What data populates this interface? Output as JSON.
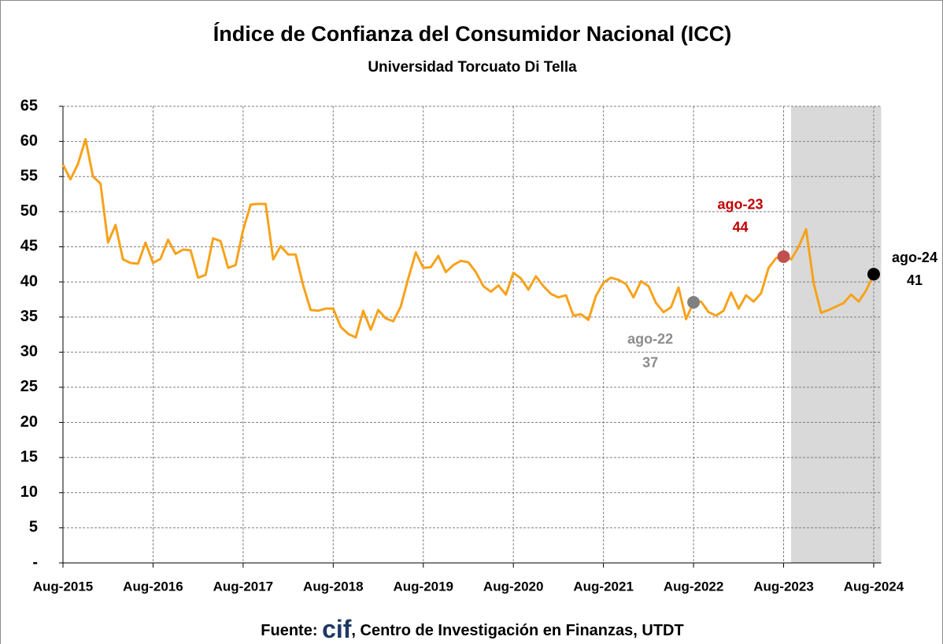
{
  "chart_data": {
    "type": "line",
    "title": "Índice de Confianza del Consumidor Nacional (ICC)",
    "subtitle": "Universidad Torcuato Di Tella",
    "source_prefix": "Fuente: ",
    "source_logo": "cif",
    "source_rest": ", Centro de Investigación en Finanzas, UTDT",
    "x": [
      "2015-08",
      "2015-09",
      "2015-10",
      "2015-11",
      "2015-12",
      "2016-01",
      "2016-02",
      "2016-03",
      "2016-04",
      "2016-05",
      "2016-06",
      "2016-07",
      "2016-08",
      "2016-09",
      "2016-10",
      "2016-11",
      "2016-12",
      "2017-01",
      "2017-02",
      "2017-03",
      "2017-04",
      "2017-05",
      "2017-06",
      "2017-07",
      "2017-08",
      "2017-09",
      "2017-10",
      "2017-11",
      "2017-12",
      "2018-01",
      "2018-02",
      "2018-03",
      "2018-04",
      "2018-05",
      "2018-06",
      "2018-07",
      "2018-08",
      "2018-09",
      "2018-10",
      "2018-11",
      "2018-12",
      "2019-01",
      "2019-02",
      "2019-03",
      "2019-04",
      "2019-05",
      "2019-06",
      "2019-07",
      "2019-08",
      "2019-09",
      "2019-10",
      "2019-11",
      "2019-12",
      "2020-01",
      "2020-02",
      "2020-03",
      "2020-04",
      "2020-05",
      "2020-06",
      "2020-07",
      "2020-08",
      "2020-09",
      "2020-10",
      "2020-11",
      "2020-12",
      "2021-01",
      "2021-02",
      "2021-03",
      "2021-04",
      "2021-05",
      "2021-06",
      "2021-07",
      "2021-08",
      "2021-09",
      "2021-10",
      "2021-11",
      "2021-12",
      "2022-01",
      "2022-02",
      "2022-03",
      "2022-04",
      "2022-05",
      "2022-06",
      "2022-07",
      "2022-08",
      "2022-09",
      "2022-10",
      "2022-11",
      "2022-12",
      "2023-01",
      "2023-02",
      "2023-03",
      "2023-04",
      "2023-05",
      "2023-06",
      "2023-07",
      "2023-08",
      "2023-09",
      "2023-10",
      "2023-11",
      "2023-12",
      "2024-01",
      "2024-02",
      "2024-03",
      "2024-04",
      "2024-05",
      "2024-06",
      "2024-07",
      "2024-08"
    ],
    "values": [
      56.7,
      54.6,
      56.8,
      60.3,
      55.0,
      54.0,
      45.6,
      48.1,
      43.2,
      42.7,
      42.6,
      45.6,
      42.7,
      43.3,
      46.0,
      44.0,
      44.6,
      44.5,
      40.6,
      41.0,
      46.2,
      45.8,
      42.0,
      42.4,
      47.4,
      51.0,
      51.1,
      51.1,
      43.2,
      45.1,
      43.9,
      43.9,
      39.5,
      36.0,
      35.9,
      36.2,
      36.2,
      33.6,
      32.6,
      32.1,
      35.9,
      33.2,
      36.0,
      34.8,
      34.4,
      36.5,
      40.5,
      44.2,
      42.0,
      42.1,
      43.7,
      41.4,
      42.4,
      43.0,
      42.8,
      41.4,
      39.4,
      38.6,
      39.5,
      38.2,
      41.3,
      40.5,
      38.9,
      40.8,
      39.4,
      38.3,
      37.8,
      38.1,
      35.2,
      35.4,
      34.6,
      38.0,
      39.9,
      40.6,
      40.3,
      39.7,
      37.8,
      40.1,
      39.4,
      37.0,
      35.7,
      36.4,
      39.2,
      34.7,
      37.1,
      37.2,
      35.7,
      35.2,
      35.9,
      38.5,
      36.2,
      38.1,
      37.2,
      38.4,
      42.0,
      43.4,
      43.6,
      43.2,
      45.0,
      47.5,
      39.8,
      35.6,
      36.0,
      36.5,
      37.0,
      38.2,
      37.2,
      38.8,
      41.1
    ],
    "color": "#f7a21b",
    "xlim": [
      "2015-08",
      "2024-09"
    ],
    "xticks": [
      {
        "value": "2015-08",
        "label": "Aug-2015"
      },
      {
        "value": "2016-08",
        "label": "Aug-2016"
      },
      {
        "value": "2017-08",
        "label": "Aug-2017"
      },
      {
        "value": "2018-08",
        "label": "Aug-2018"
      },
      {
        "value": "2019-08",
        "label": "Aug-2019"
      },
      {
        "value": "2020-08",
        "label": "Aug-2020"
      },
      {
        "value": "2021-08",
        "label": "Aug-2021"
      },
      {
        "value": "2022-08",
        "label": "Aug-2022"
      },
      {
        "value": "2023-08",
        "label": "Aug-2023"
      },
      {
        "value": "2024-08",
        "label": "Aug-2024"
      }
    ],
    "ylim": [
      0,
      65
    ],
    "yticks": [
      {
        "value": 0,
        "label": "-"
      },
      5,
      10,
      15,
      20,
      25,
      30,
      35,
      40,
      45,
      50,
      55,
      60,
      65
    ],
    "grid": true,
    "shade_from": "2023-09",
    "shade_color": "#d9d9d9",
    "annotations": [
      {
        "x": "2022-08",
        "value": 37.1,
        "label": "ago-22",
        "value_label": "37",
        "color": "#808080",
        "text_color": "#8c8c8c",
        "position": "below-left"
      },
      {
        "x": "2023-08",
        "value": 43.6,
        "label": "ago-23",
        "value_label": "44",
        "color": "#c0504d",
        "text_color": "#c00000",
        "position": "above-left"
      },
      {
        "x": "2024-08",
        "value": 41.1,
        "label": "ago-24",
        "value_label": "41",
        "color": "#000000",
        "text_color": "#000000",
        "position": "right"
      }
    ]
  }
}
